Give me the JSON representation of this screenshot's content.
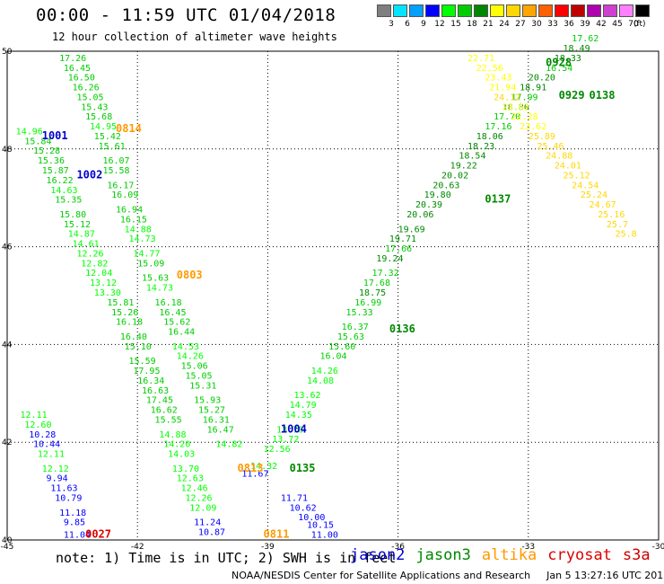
{
  "header": {
    "title": "00:00 - 11:59 UTC 01/04/2018",
    "subtitle": "12 hour collection of altimeter wave heights"
  },
  "color_scale": {
    "unit_label": "(ft)",
    "bins": [
      {
        "label": "3",
        "color": "#7f7f7f"
      },
      {
        "label": "6",
        "color": "#00e5ff"
      },
      {
        "label": "9",
        "color": "#00a0ff"
      },
      {
        "label": "12",
        "color": "#0000ff"
      },
      {
        "label": "15",
        "color": "#00ff00"
      },
      {
        "label": "18",
        "color": "#00cc00"
      },
      {
        "label": "21",
        "color": "#008800"
      },
      {
        "label": "24",
        "color": "#ffff00"
      },
      {
        "label": "27",
        "color": "#ffd700"
      },
      {
        "label": "30",
        "color": "#ffa500"
      },
      {
        "label": "33",
        "color": "#ff6000"
      },
      {
        "label": "36",
        "color": "#ff0000"
      },
      {
        "label": "39",
        "color": "#c00000"
      },
      {
        "label": "42",
        "color": "#b000b0"
      },
      {
        "label": "45",
        "color": "#d040d0"
      },
      {
        "label": "70",
        "color": "#ff80ff"
      },
      {
        "label": "",
        "color": "#000000"
      }
    ]
  },
  "axes": {
    "lon_ticks": [
      "-45",
      "-42",
      "-39",
      "-36",
      "-33",
      "-30"
    ],
    "lat_ticks": [
      "50",
      "48",
      "46",
      "44",
      "42",
      "40"
    ],
    "lon_range": [
      -45,
      -30
    ],
    "lat_range": [
      40,
      50
    ]
  },
  "satellites": [
    {
      "name": "jason2",
      "color": "#0000cc"
    },
    {
      "name": "jason3",
      "color": "#008800"
    },
    {
      "name": "altika",
      "color": "#ff9900"
    },
    {
      "name": "cryosat",
      "color": "#dd0000"
    },
    {
      "name": "s3a",
      "color": "#cc0000"
    }
  ],
  "footer": {
    "note": "note: 1) Time is in UTC; 2) SWH is in feet",
    "credit": "NOAA/NESDIS Center for Satellite Applications and Research",
    "timestamp": "Jan  5 13:27:16 UTC 2018"
  },
  "chart_data": {
    "type": "map-scatter",
    "unit": "ft",
    "pass_labels": [
      {
        "label": "1001",
        "sat": "jason2",
        "lon": -44.2,
        "lat": 48.2
      },
      {
        "label": "1002",
        "sat": "jason2",
        "lon": -43.4,
        "lat": 47.4
      },
      {
        "label": "0814",
        "sat": "altika",
        "lon": -42.5,
        "lat": 48.35
      },
      {
        "label": "0803",
        "sat": "altika",
        "lon": -41.1,
        "lat": 45.35
      },
      {
        "label": "0813",
        "sat": "altika",
        "lon": -39.7,
        "lat": 41.4
      },
      {
        "label": "0811",
        "sat": "altika",
        "lon": -39.1,
        "lat": 40.05
      },
      {
        "label": "0027",
        "sat": "cryosat",
        "lon": -43.2,
        "lat": 40.05
      },
      {
        "label": "0928",
        "sat": "jason3",
        "lon": -32.6,
        "lat": 49.7
      },
      {
        "label": "0929",
        "sat": "jason3",
        "lon": -32.3,
        "lat": 49.03
      },
      {
        "label": "0138",
        "sat": "jason3",
        "lon": -31.6,
        "lat": 49.03
      },
      {
        "label": "0137",
        "sat": "jason3",
        "lon": -34.0,
        "lat": 46.9
      },
      {
        "label": "0136",
        "sat": "jason3",
        "lon": -36.2,
        "lat": 44.25
      },
      {
        "label": "0135",
        "sat": "jason3",
        "lon": -38.5,
        "lat": 41.4
      },
      {
        "label": "1004",
        "sat": "jason2",
        "lon": -38.7,
        "lat": 42.2
      }
    ],
    "tracks": [
      {
        "name": "jason3-desc-west",
        "sat": "jason3",
        "points": [
          {
            "lon": -43.8,
            "lat": 49.8,
            "v": "17.26"
          },
          {
            "lon": -43.7,
            "lat": 49.6,
            "v": "16.45"
          },
          {
            "lon": -43.6,
            "lat": 49.4,
            "v": "16.50"
          },
          {
            "lon": -43.5,
            "lat": 49.2,
            "v": "16.26"
          },
          {
            "lon": -43.4,
            "lat": 49.0,
            "v": "15.05"
          },
          {
            "lon": -43.3,
            "lat": 48.8,
            "v": "15.43"
          },
          {
            "lon": -43.2,
            "lat": 48.6,
            "v": "15.68"
          },
          {
            "lon": -43.1,
            "lat": 48.4,
            "v": "14.95"
          },
          {
            "lon": -43.0,
            "lat": 48.2,
            "v": "15.42"
          },
          {
            "lon": -42.9,
            "lat": 48.0,
            "v": "15.61"
          },
          {
            "lon": -42.8,
            "lat": 47.7,
            "v": "16.07"
          },
          {
            "lon": -42.8,
            "lat": 47.5,
            "v": "15.58"
          },
          {
            "lon": -42.7,
            "lat": 47.2,
            "v": "16.17"
          },
          {
            "lon": -42.6,
            "lat": 47.0,
            "v": "16.09"
          },
          {
            "lon": -42.5,
            "lat": 46.7,
            "v": "16.94"
          },
          {
            "lon": -42.4,
            "lat": 46.5,
            "v": "16.15"
          },
          {
            "lon": -42.3,
            "lat": 46.3,
            "v": "14.88"
          },
          {
            "lon": -42.2,
            "lat": 46.1,
            "v": "14.73"
          },
          {
            "lon": -42.1,
            "lat": 45.8,
            "v": "14.77"
          },
          {
            "lon": -42.0,
            "lat": 45.6,
            "v": "15.09"
          },
          {
            "lon": -41.9,
            "lat": 45.3,
            "v": "15.63"
          },
          {
            "lon": -41.8,
            "lat": 45.1,
            "v": "14.73"
          },
          {
            "lon": -41.6,
            "lat": 44.8,
            "v": "16.18"
          },
          {
            "lon": -41.5,
            "lat": 44.6,
            "v": "16.45"
          },
          {
            "lon": -41.4,
            "lat": 44.4,
            "v": "15.62"
          },
          {
            "lon": -41.3,
            "lat": 44.2,
            "v": "16.44"
          },
          {
            "lon": -41.2,
            "lat": 43.9,
            "v": "14.53"
          },
          {
            "lon": -41.1,
            "lat": 43.7,
            "v": "14.26"
          },
          {
            "lon": -41.0,
            "lat": 43.5,
            "v": "15.06"
          },
          {
            "lon": -40.9,
            "lat": 43.3,
            "v": "15.05"
          },
          {
            "lon": -40.8,
            "lat": 43.1,
            "v": "15.31"
          },
          {
            "lon": -40.7,
            "lat": 42.8,
            "v": "15.93"
          },
          {
            "lon": -40.6,
            "lat": 42.6,
            "v": "15.27"
          },
          {
            "lon": -40.5,
            "lat": 42.4,
            "v": "16.31"
          },
          {
            "lon": -40.4,
            "lat": 42.2,
            "v": "16.47"
          },
          {
            "lon": -40.2,
            "lat": 41.9,
            "v": "14.82"
          }
        ]
      },
      {
        "name": "jason3-desc-mid",
        "sat": "jason3",
        "points": [
          {
            "lon": -44.8,
            "lat": 48.3,
            "v": "14.96"
          },
          {
            "lon": -44.6,
            "lat": 48.1,
            "v": "15.84"
          },
          {
            "lon": -44.4,
            "lat": 47.9,
            "v": "15.28"
          },
          {
            "lon": -44.3,
            "lat": 47.7,
            "v": "15.36"
          },
          {
            "lon": -44.2,
            "lat": 47.5,
            "v": "15.87"
          },
          {
            "lon": -44.1,
            "lat": 47.3,
            "v": "16.22"
          },
          {
            "lon": -44.0,
            "lat": 47.1,
            "v": "14.63"
          },
          {
            "lon": -43.9,
            "lat": 46.9,
            "v": "15.35"
          },
          {
            "lon": -43.8,
            "lat": 46.6,
            "v": "15.80"
          },
          {
            "lon": -43.7,
            "lat": 46.4,
            "v": "15.12"
          },
          {
            "lon": -43.6,
            "lat": 46.2,
            "v": "14.87"
          },
          {
            "lon": -43.5,
            "lat": 46.0,
            "v": "14.61"
          },
          {
            "lon": -43.4,
            "lat": 45.8,
            "v": "12.26"
          },
          {
            "lon": -43.3,
            "lat": 45.6,
            "v": "12.82"
          },
          {
            "lon": -43.2,
            "lat": 45.4,
            "v": "12.04"
          },
          {
            "lon": -43.1,
            "lat": 45.2,
            "v": "13.12"
          },
          {
            "lon": -43.0,
            "lat": 45.0,
            "v": "13.30"
          },
          {
            "lon": -42.7,
            "lat": 44.8,
            "v": "15.81"
          },
          {
            "lon": -42.6,
            "lat": 44.6,
            "v": "15.26"
          },
          {
            "lon": -42.5,
            "lat": 44.4,
            "v": "16.18"
          },
          {
            "lon": -42.4,
            "lat": 44.1,
            "v": "16.40"
          },
          {
            "lon": -42.3,
            "lat": 43.9,
            "v": "15.10"
          },
          {
            "lon": -42.2,
            "lat": 43.6,
            "v": "15.59"
          },
          {
            "lon": -42.1,
            "lat": 43.4,
            "v": "17.95"
          },
          {
            "lon": -42.0,
            "lat": 43.2,
            "v": "16.34"
          },
          {
            "lon": -41.9,
            "lat": 43.0,
            "v": "16.63"
          },
          {
            "lon": -41.8,
            "lat": 42.8,
            "v": "17.45"
          },
          {
            "lon": -41.7,
            "lat": 42.6,
            "v": "16.62"
          },
          {
            "lon": -41.6,
            "lat": 42.4,
            "v": "15.55"
          },
          {
            "lon": -41.5,
            "lat": 42.1,
            "v": "14.88"
          },
          {
            "lon": -41.4,
            "lat": 41.9,
            "v": "14.20"
          },
          {
            "lon": -41.3,
            "lat": 41.7,
            "v": "14.03"
          },
          {
            "lon": -41.2,
            "lat": 41.4,
            "v": "13.70"
          },
          {
            "lon": -41.1,
            "lat": 41.2,
            "v": "12.63"
          },
          {
            "lon": -41.0,
            "lat": 41.0,
            "v": "12.46"
          },
          {
            "lon": -40.9,
            "lat": 40.8,
            "v": "12.26"
          },
          {
            "lon": -40.8,
            "lat": 40.6,
            "v": "12.09"
          },
          {
            "lon": -40.7,
            "lat": 40.3,
            "v": "11.24"
          },
          {
            "lon": -40.6,
            "lat": 40.1,
            "v": "10.87"
          }
        ]
      },
      {
        "name": "jason2-west-edge",
        "sat": "jason2",
        "points": [
          {
            "lon": -44.7,
            "lat": 42.5,
            "v": "12.11"
          },
          {
            "lon": -44.6,
            "lat": 42.3,
            "v": "12.60"
          },
          {
            "lon": -44.5,
            "lat": 42.1,
            "v": "10.28"
          },
          {
            "lon": -44.4,
            "lat": 41.9,
            "v": "10.44"
          },
          {
            "lon": -44.3,
            "lat": 41.7,
            "v": "12.11"
          },
          {
            "lon": -44.2,
            "lat": 41.4,
            "v": "12.12"
          },
          {
            "lon": -44.1,
            "lat": 41.2,
            "v": "9.94"
          },
          {
            "lon": -44.0,
            "lat": 41.0,
            "v": "11.63"
          },
          {
            "lon": -43.9,
            "lat": 40.8,
            "v": "10.79"
          },
          {
            "lon": -43.8,
            "lat": 40.5,
            "v": "11.18"
          },
          {
            "lon": -43.7,
            "lat": 40.3,
            "v": "9.85"
          },
          {
            "lon": -43.7,
            "lat": 40.05,
            "v": "11.04"
          }
        ]
      },
      {
        "name": "jason2-crossing",
        "sat": "jason2",
        "points": [
          {
            "lon": -39.6,
            "lat": 41.3,
            "v": "11.67"
          },
          {
            "lon": -39.4,
            "lat": 41.45,
            "v": "14.32"
          },
          {
            "lon": -38.7,
            "lat": 40.8,
            "v": "11.71"
          },
          {
            "lon": -38.5,
            "lat": 40.6,
            "v": "10.62"
          },
          {
            "lon": -38.3,
            "lat": 40.4,
            "v": "10.00"
          },
          {
            "lon": -38.1,
            "lat": 40.25,
            "v": "10.15"
          },
          {
            "lon": -38.0,
            "lat": 40.05,
            "v": "11.00"
          }
        ]
      },
      {
        "name": "jason3-asc",
        "sat": "jason3",
        "points": [
          {
            "lon": -39.1,
            "lat": 41.8,
            "v": "12.56"
          },
          {
            "lon": -38.9,
            "lat": 42.0,
            "v": "13.72"
          },
          {
            "lon": -38.8,
            "lat": 42.2,
            "v": "13.76"
          },
          {
            "lon": -38.6,
            "lat": 42.5,
            "v": "14.35"
          },
          {
            "lon": -38.5,
            "lat": 42.7,
            "v": "14.79"
          },
          {
            "lon": -38.4,
            "lat": 42.9,
            "v": "13.62"
          },
          {
            "lon": -38.1,
            "lat": 43.2,
            "v": "14.08"
          },
          {
            "lon": -38.0,
            "lat": 43.4,
            "v": "14.26"
          },
          {
            "lon": -37.8,
            "lat": 43.7,
            "v": "16.04"
          },
          {
            "lon": -37.6,
            "lat": 43.9,
            "v": "15.60"
          },
          {
            "lon": -37.4,
            "lat": 44.1,
            "v": "15.63"
          },
          {
            "lon": -37.3,
            "lat": 44.3,
            "v": "16.37"
          },
          {
            "lon": -37.2,
            "lat": 44.6,
            "v": "15.33"
          },
          {
            "lon": -37.0,
            "lat": 44.8,
            "v": "16.99"
          },
          {
            "lon": -36.9,
            "lat": 45.0,
            "v": "18.75"
          },
          {
            "lon": -36.8,
            "lat": 45.2,
            "v": "17.68"
          },
          {
            "lon": -36.6,
            "lat": 45.4,
            "v": "17.32"
          },
          {
            "lon": -36.5,
            "lat": 45.7,
            "v": "19.24"
          },
          {
            "lon": -36.3,
            "lat": 45.9,
            "v": "17.66"
          },
          {
            "lon": -36.2,
            "lat": 46.1,
            "v": "19.71"
          },
          {
            "lon": -36.0,
            "lat": 46.3,
            "v": "19.69"
          },
          {
            "lon": -35.8,
            "lat": 46.6,
            "v": "20.06"
          },
          {
            "lon": -35.6,
            "lat": 46.8,
            "v": "20.39"
          },
          {
            "lon": -35.4,
            "lat": 47.0,
            "v": "19.80"
          },
          {
            "lon": -35.2,
            "lat": 47.2,
            "v": "20.63"
          },
          {
            "lon": -35.0,
            "lat": 47.4,
            "v": "20.02"
          },
          {
            "lon": -34.8,
            "lat": 47.6,
            "v": "19.22"
          },
          {
            "lon": -34.6,
            "lat": 47.8,
            "v": "18.54"
          },
          {
            "lon": -34.4,
            "lat": 48.0,
            "v": "18.23"
          },
          {
            "lon": -34.2,
            "lat": 48.2,
            "v": "18.06"
          },
          {
            "lon": -34.0,
            "lat": 48.4,
            "v": "17.16"
          },
          {
            "lon": -33.8,
            "lat": 48.6,
            "v": "17.70"
          },
          {
            "lon": -33.6,
            "lat": 48.8,
            "v": "18.80"
          },
          {
            "lon": -33.4,
            "lat": 49.0,
            "v": "17.99"
          },
          {
            "lon": -33.2,
            "lat": 49.2,
            "v": "18.91"
          },
          {
            "lon": -33.0,
            "lat": 49.4,
            "v": "20.20"
          },
          {
            "lon": -32.6,
            "lat": 49.6,
            "v": "16.54"
          },
          {
            "lon": -32.4,
            "lat": 49.8,
            "v": "18.33"
          },
          {
            "lon": -32.2,
            "lat": 50.0,
            "v": "18.49"
          },
          {
            "lon": -32.0,
            "lat": 50.2,
            "v": "17.62"
          }
        ]
      },
      {
        "name": "altika-ne",
        "sat": "altika",
        "points": [
          {
            "lon": -34.4,
            "lat": 49.8,
            "v": "22.71"
          },
          {
            "lon": -34.2,
            "lat": 49.6,
            "v": "22.56"
          },
          {
            "lon": -34.0,
            "lat": 49.4,
            "v": "23.43"
          },
          {
            "lon": -33.9,
            "lat": 49.2,
            "v": "21.94"
          },
          {
            "lon": -33.8,
            "lat": 49.0,
            "v": "24.12"
          },
          {
            "lon": -33.6,
            "lat": 48.8,
            "v": "23.62"
          },
          {
            "lon": -33.4,
            "lat": 48.6,
            "v": "22.28"
          },
          {
            "lon": -33.2,
            "lat": 48.4,
            "v": "23.62"
          },
          {
            "lon": -33.0,
            "lat": 48.2,
            "v": "25.89"
          },
          {
            "lon": -32.8,
            "lat": 48.0,
            "v": "25.46"
          },
          {
            "lon": -32.6,
            "lat": 47.8,
            "v": "24.88"
          },
          {
            "lon": -32.4,
            "lat": 47.6,
            "v": "24.01"
          },
          {
            "lon": -32.2,
            "lat": 47.4,
            "v": "25.12"
          },
          {
            "lon": -32.0,
            "lat": 47.2,
            "v": "24.54"
          },
          {
            "lon": -31.8,
            "lat": 47.0,
            "v": "25.24"
          },
          {
            "lon": -31.6,
            "lat": 46.8,
            "v": "24.67"
          },
          {
            "lon": -31.4,
            "lat": 46.6,
            "v": "25.16"
          },
          {
            "lon": -31.2,
            "lat": 46.4,
            "v": "25.7"
          },
          {
            "lon": -31.0,
            "lat": 46.2,
            "v": "25.8"
          }
        ]
      }
    ]
  }
}
